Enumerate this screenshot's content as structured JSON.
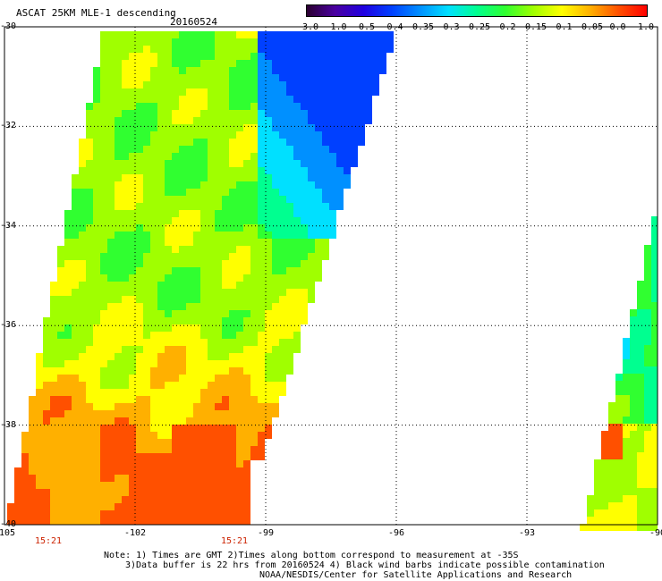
{
  "header": {
    "title": "ASCAT 25KM MLE-1 descending",
    "date": "20160524"
  },
  "colorbar": {
    "labels": [
      "-3.0",
      "-1.0",
      "-0.5",
      "-0.4",
      "-0.35",
      "-0.3",
      "-0.25",
      "-0.2",
      "-0.15",
      "-0.1",
      "-0.05",
      "0.0",
      "1.0"
    ],
    "colors": [
      "#2b0030",
      "#4a00a0",
      "#2000e0",
      "#0040ff",
      "#0090ff",
      "#00e0ff",
      "#00ff90",
      "#30ff30",
      "#a0ff00",
      "#ffff00",
      "#ffb000",
      "#ff5000",
      "#ff0000"
    ]
  },
  "axes": {
    "y_ticks": [
      "-30",
      "-32",
      "-34",
      "-36",
      "-38",
      "-40"
    ],
    "x_ticks": [
      "-105",
      "-102",
      "-99",
      "-96",
      "-93",
      "-90"
    ]
  },
  "swaths": {
    "left": {
      "start_time": "15:21",
      "end_time": "15:21"
    }
  },
  "notes": {
    "line1": "Note: 1) Times are GMT 2)Times along bottom correspond to measurement at -35S",
    "line2": "3)Data buffer is 22 hrs from 20160524 4) Black wind barbs indicate possible contamination",
    "line3": "NOAA/NESDIS/Center for Satellite Applications and Research"
  }
}
